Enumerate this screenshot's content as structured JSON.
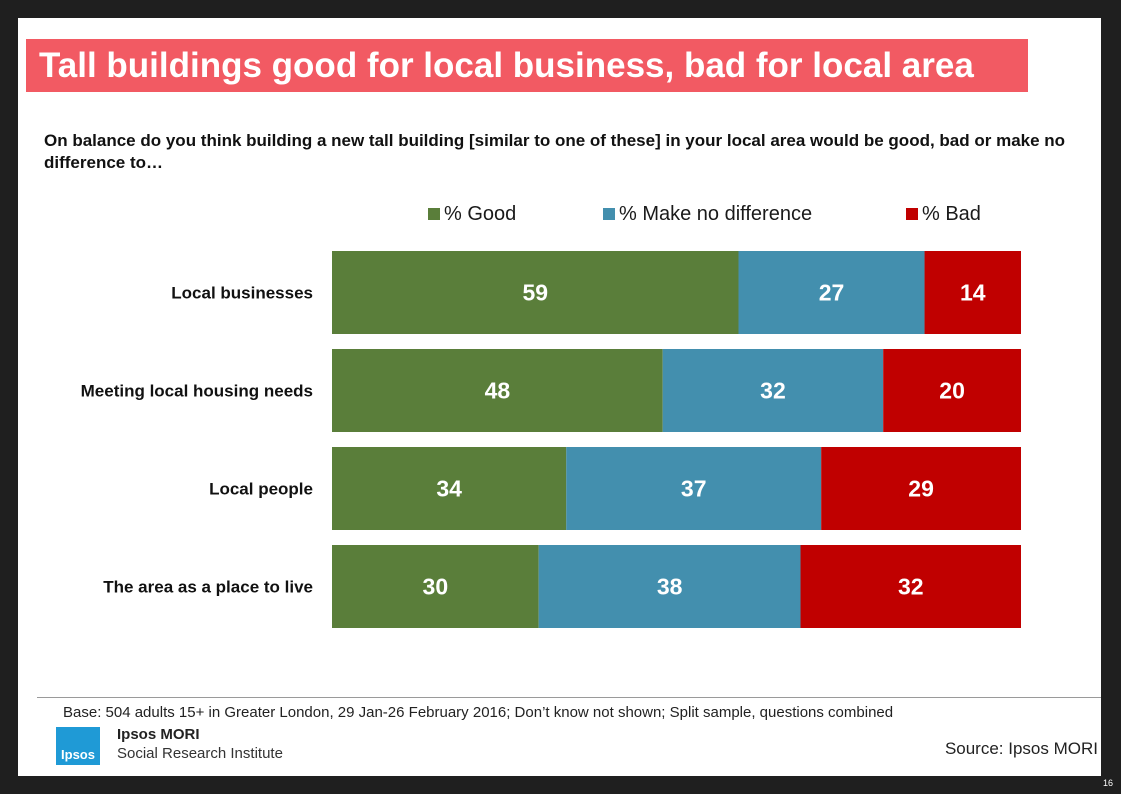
{
  "slide": {
    "title": "Tall buildings good for local business, bad for local area",
    "question": "On balance do you think building a new tall building [similar to one of these] in your local area would be good, bad or make no difference to…",
    "base_note": "Base: 504 adults 15+ in Greater London, 29 Jan-26 February 2016; Don’t know not shown; Split sample, questions combined",
    "logo_text": "Ipsos",
    "brand_name": "Ipsos MORI",
    "brand_sub": "Social Research Institute",
    "source": "Source: Ipsos MORI",
    "page_number": "16"
  },
  "colors": {
    "title_bg": "#f25a63",
    "good": "#5a7e3a",
    "no_difference": "#438fae",
    "bad": "#c00000"
  },
  "chart_data": {
    "type": "bar",
    "orientation": "horizontal",
    "stacked": true,
    "categories": [
      "Local businesses",
      "Meeting local housing needs",
      "Local people",
      "The area as a place to live"
    ],
    "series": [
      {
        "name": "% Good",
        "color": "#5a7e3a",
        "values": [
          59,
          48,
          34,
          30
        ]
      },
      {
        "name": "% Make no difference",
        "color": "#438fae",
        "values": [
          27,
          32,
          37,
          38
        ]
      },
      {
        "name": "% Bad",
        "color": "#c00000",
        "values": [
          14,
          20,
          29,
          32
        ]
      }
    ],
    "xlim": [
      0,
      100
    ],
    "legend_position": "top",
    "title": "",
    "xlabel": "",
    "ylabel": ""
  }
}
